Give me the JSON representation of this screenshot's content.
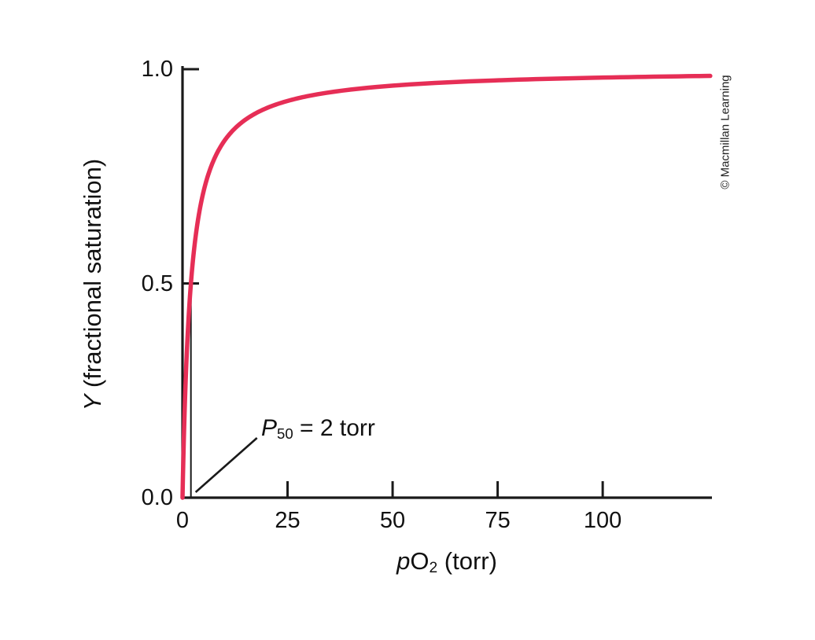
{
  "figure": {
    "background": "#ffffff",
    "credit": "© Macmillan Learning"
  },
  "chart_data": {
    "type": "line",
    "description": "Hyperbolic oxygen-binding curve: fractional saturation Y versus pO2, half-saturation at P50 = 2 torr",
    "xlabel_parts": {
      "italic": "p",
      "text": "O",
      "subscript": "2",
      "suffix": " (torr)"
    },
    "ylabel_parts": {
      "italic": "Y",
      "suffix": " (fractional saturation)"
    },
    "xlim": [
      0,
      126
    ],
    "ylim": [
      0,
      1.0
    ],
    "x_ticks": {
      "values": [
        0,
        25,
        50,
        75,
        100
      ],
      "labels": [
        "0",
        "25",
        "50",
        "75",
        "100"
      ]
    },
    "y_ticks": {
      "values": [
        0,
        0.5,
        1.0
      ],
      "labels": [
        "0.0",
        "0.5",
        "1.0"
      ]
    },
    "grid": false,
    "legend": false,
    "axis_color": "#1a1a1a",
    "series": [
      {
        "name": "fractional saturation",
        "color": "#e62e56",
        "model": "Y = pO2 / (P50 + pO2)",
        "P50_torr": 2,
        "points": [
          {
            "x": 0,
            "y": 0.0
          },
          {
            "x": 1,
            "y": 0.333
          },
          {
            "x": 2,
            "y": 0.5
          },
          {
            "x": 5,
            "y": 0.714
          },
          {
            "x": 10,
            "y": 0.833
          },
          {
            "x": 20,
            "y": 0.909
          },
          {
            "x": 25,
            "y": 0.926
          },
          {
            "x": 50,
            "y": 0.962
          },
          {
            "x": 75,
            "y": 0.974
          },
          {
            "x": 100,
            "y": 0.98
          },
          {
            "x": 126,
            "y": 0.984
          }
        ]
      }
    ],
    "annotation": {
      "symbol": "P",
      "subscript": "50",
      "value_text": " = 2 torr",
      "marks_point": {
        "x_torr": 2,
        "y_saturation": 0.5
      }
    }
  }
}
